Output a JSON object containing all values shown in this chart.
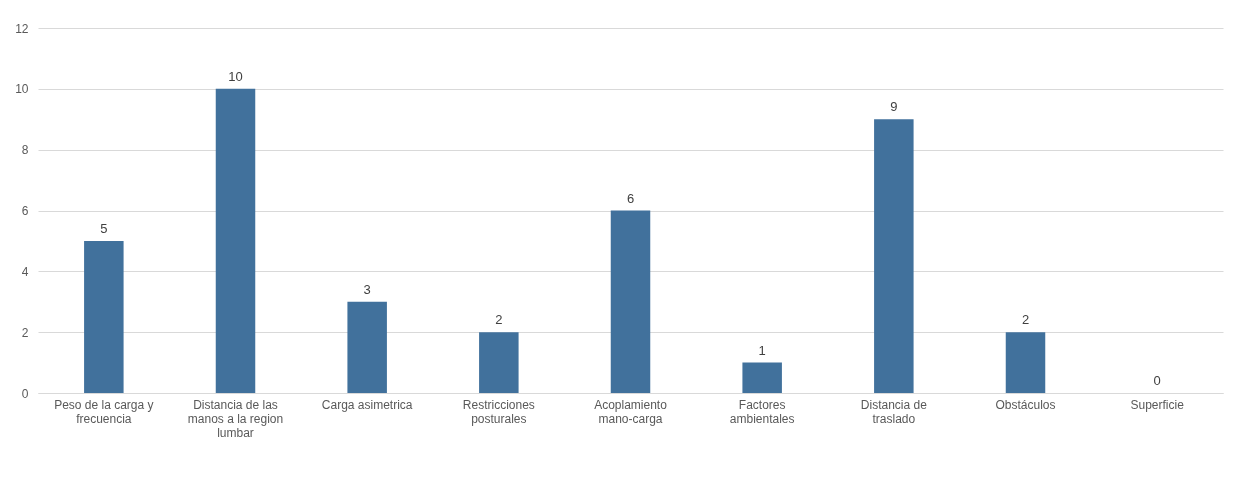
{
  "chart_data": {
    "type": "bar",
    "categories": [
      "Peso de la carga y frecuencia",
      "Distancia de las manos a la region lumbar",
      "Carga asimetrica",
      "Restricciones posturales",
      "Acoplamiento mano-carga",
      "Factores ambientales",
      "Distancia de traslado",
      "Obstáculos",
      "Superficie"
    ],
    "values": [
      5,
      10,
      3,
      2,
      6,
      1,
      9,
      2,
      0
    ],
    "color": "#41719c",
    "ylim": [
      0,
      12
    ],
    "yticks": [
      0,
      2,
      4,
      6,
      8,
      10,
      12
    ],
    "grid": "y",
    "data_labels": true
  }
}
